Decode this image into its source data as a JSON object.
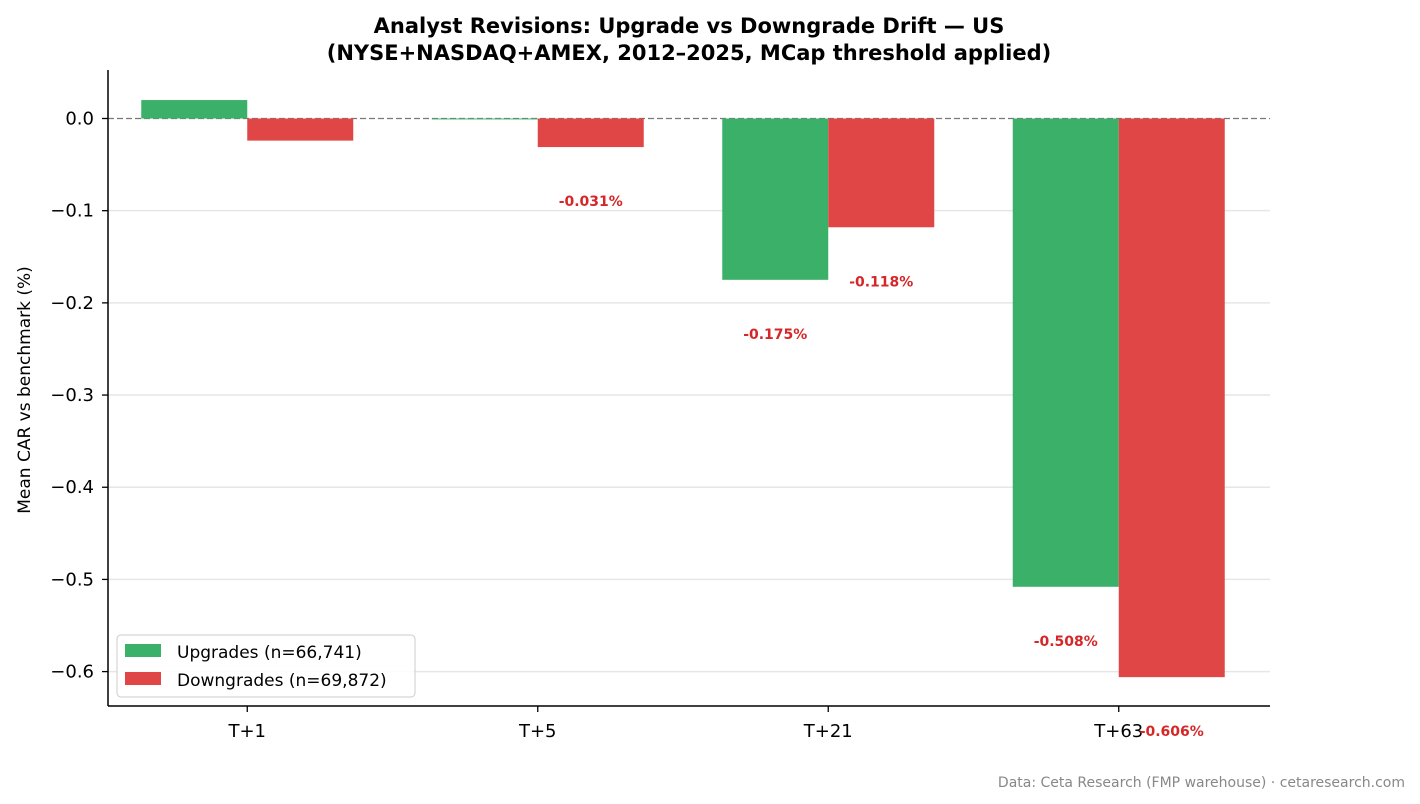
{
  "chart_data": {
    "type": "bar",
    "title": "Analyst Revisions: Upgrade vs Downgrade Drift — US",
    "subtitle": "(NYSE+NASDAQ+AMEX, 2012–2025, MCap threshold applied)",
    "xlabel": "",
    "ylabel": "Mean CAR vs benchmark (%)",
    "categories": [
      "T+1",
      "T+5",
      "T+21",
      "T+63"
    ],
    "series": [
      {
        "name": "Upgrades (n=66,741)",
        "color": "#3bb068",
        "values": [
          0.02,
          -0.001,
          -0.175,
          -0.508
        ]
      },
      {
        "name": "Downgrades (n=69,872)",
        "color": "#e04646",
        "values": [
          -0.024,
          -0.031,
          -0.118,
          -0.606
        ]
      }
    ],
    "data_labels": [
      {
        "text": "-0.031%",
        "category": "T+5",
        "series": "Downgrades (n=69,872)"
      },
      {
        "text": "-0.175%",
        "category": "T+21",
        "series": "Upgrades (n=66,741)"
      },
      {
        "text": "-0.118%",
        "category": "T+21",
        "series": "Downgrades (n=69,872)"
      },
      {
        "text": "-0.508%",
        "category": "T+63",
        "series": "Upgrades (n=66,741)"
      },
      {
        "text": "-0.606%",
        "category": "T+63",
        "series": "Downgrades (n=69,872)"
      }
    ],
    "ylim": [
      -0.64,
      0.052
    ],
    "yticks": [
      0.0,
      -0.1,
      -0.2,
      -0.3,
      -0.4,
      -0.5,
      -0.6
    ],
    "ytick_labels": [
      "0.0",
      "−0.1",
      "−0.2",
      "−0.3",
      "−0.4",
      "−0.5",
      "−0.6"
    ],
    "grid": "horizontal",
    "zero_line": "dashed",
    "legend_position": "lower-left"
  },
  "source_note": "Data: Ceta Research (FMP warehouse) · cetaresearch.com"
}
